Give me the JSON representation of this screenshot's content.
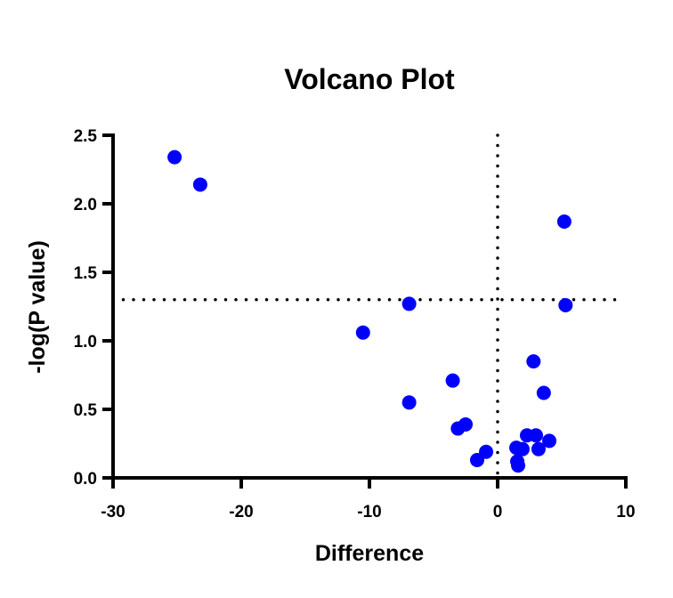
{
  "chart_data": {
    "type": "scatter",
    "title": "Volcano Plot",
    "xlabel": "Difference",
    "ylabel": "-log(P value)",
    "xlim": [
      -30,
      10
    ],
    "ylim": [
      0,
      2.5
    ],
    "xticks": [
      -30,
      -20,
      -10,
      0,
      10
    ],
    "xtick_labels": [
      "-30",
      "-20",
      "-10",
      "0",
      "10"
    ],
    "yticks": [
      0,
      0.5,
      1,
      1.5,
      2,
      2.5
    ],
    "ytick_labels": [
      "0.0",
      "0.5",
      "1.0",
      "1.5",
      "2.0",
      "2.5"
    ],
    "reference_lines": {
      "x": 0,
      "y": 1.3
    },
    "grid": false,
    "point_color": "#0000ff",
    "points": [
      {
        "x": -25.2,
        "y": 2.34
      },
      {
        "x": -23.2,
        "y": 2.14
      },
      {
        "x": 5.2,
        "y": 1.87
      },
      {
        "x": -6.9,
        "y": 1.27
      },
      {
        "x": 5.3,
        "y": 1.26
      },
      {
        "x": -10.5,
        "y": 1.06
      },
      {
        "x": 2.8,
        "y": 0.85
      },
      {
        "x": -3.5,
        "y": 0.71
      },
      {
        "x": 3.6,
        "y": 0.62
      },
      {
        "x": -6.9,
        "y": 0.55
      },
      {
        "x": -2.5,
        "y": 0.39
      },
      {
        "x": -3.1,
        "y": 0.36
      },
      {
        "x": -0.9,
        "y": 0.19
      },
      {
        "x": -1.6,
        "y": 0.13
      },
      {
        "x": 1.46,
        "y": 0.22
      },
      {
        "x": 1.94,
        "y": 0.21
      },
      {
        "x": 2.29,
        "y": 0.31
      },
      {
        "x": 2.99,
        "y": 0.31
      },
      {
        "x": 4.03,
        "y": 0.27
      },
      {
        "x": 3.19,
        "y": 0.21
      },
      {
        "x": 1.53,
        "y": 0.12
      },
      {
        "x": 1.6,
        "y": 0.09
      }
    ]
  }
}
